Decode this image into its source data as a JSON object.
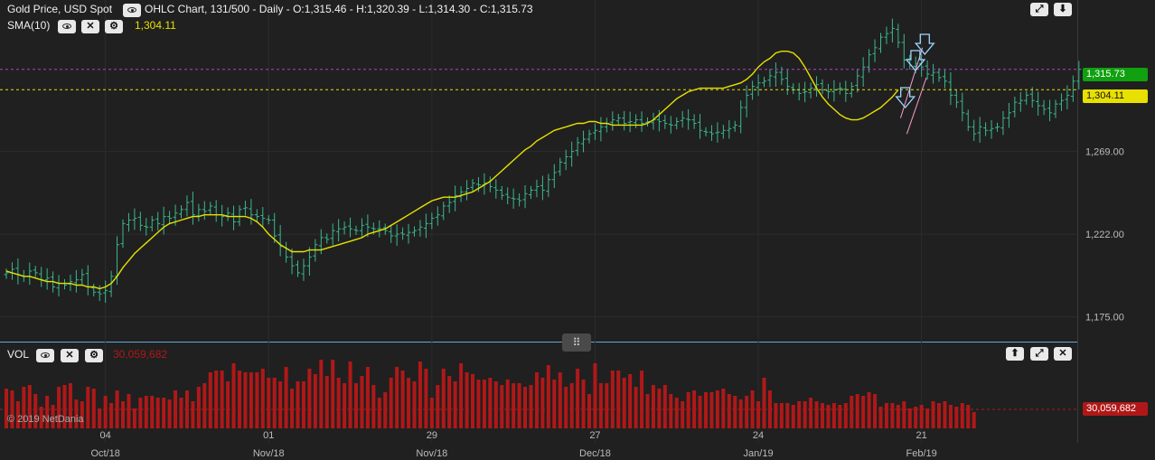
{
  "header": {
    "instrument": "Gold Price, USD Spot",
    "chart_info": "OHLC Chart, 131/500 - Daily - O:1,315.46 - H:1,320.39 - L:1,314.30 - C:1,315.73",
    "sma_label": "SMA(10)",
    "sma_value": "1,304.11",
    "close_icon_label": "✕",
    "settings_icon_label": "⚙"
  },
  "volume_panel": {
    "label": "VOL",
    "value_text": "30,059,682",
    "tag_value": "30,059,682",
    "copyright": "© 2019 NetDania"
  },
  "price_tags": {
    "last": "1,315.73",
    "sma": "1,304.11"
  },
  "colors": {
    "background": "#202020",
    "bar_up": "#3bb88d",
    "sma_line": "#e8e000",
    "volume_bar": "#b01818",
    "last_tag": "#10a010",
    "sma_tag": "#e8e000",
    "channel_line": "#ff9bd0",
    "arrow": "#9fd8ff"
  },
  "chart_data": {
    "type": "ohlc",
    "ylim": [
      1165,
      1350
    ],
    "y_ticks": [
      "1,175.00",
      "1,222.00",
      "1,269.00"
    ],
    "y_tick_values": [
      1175,
      1222,
      1269
    ],
    "last_price": 1315.73,
    "sma_last": 1304.11,
    "x_tick_days": [
      "04",
      "01",
      "29",
      "27",
      "24",
      "21"
    ],
    "x_tick_months": [
      "Oct/18",
      "Nov/18",
      "Nov/18",
      "Dec/18",
      "Jan/19",
      "Feb/19"
    ],
    "x_tick_index": [
      17,
      45,
      73,
      101,
      129,
      157
    ],
    "closes": [
      1200,
      1202,
      1199,
      1198,
      1201,
      1200,
      1196,
      1197,
      1192,
      1194,
      1193,
      1195,
      1196,
      1199,
      1192,
      1189,
      1188,
      1190,
      1198,
      1216,
      1228,
      1230,
      1231,
      1227,
      1226,
      1230,
      1228,
      1232,
      1231,
      1234,
      1236,
      1240,
      1233,
      1236,
      1235,
      1238,
      1233,
      1232,
      1234,
      1229,
      1236,
      1237,
      1233,
      1232,
      1231,
      1230,
      1221,
      1215,
      1209,
      1204,
      1200,
      1204,
      1209,
      1216,
      1220,
      1219,
      1224,
      1225,
      1226,
      1225,
      1224,
      1227,
      1226,
      1225,
      1225,
      1224,
      1221,
      1222,
      1222,
      1223,
      1224,
      1226,
      1228,
      1231,
      1233,
      1238,
      1240,
      1244,
      1246,
      1248,
      1251,
      1250,
      1251,
      1249,
      1247,
      1244,
      1243,
      1242,
      1241,
      1245,
      1247,
      1249,
      1247,
      1253,
      1257,
      1263,
      1266,
      1269,
      1274,
      1276,
      1279,
      1281,
      1283,
      1285,
      1287,
      1288,
      1285,
      1286,
      1287,
      1285,
      1286,
      1287,
      1286,
      1285,
      1284,
      1286,
      1288,
      1287,
      1285,
      1281,
      1280,
      1279,
      1280,
      1281,
      1282,
      1284,
      1294,
      1301,
      1306,
      1308,
      1309,
      1312,
      1314,
      1310,
      1306,
      1304,
      1302,
      1303,
      1305,
      1307,
      1304,
      1303,
      1304,
      1305,
      1302,
      1306,
      1312,
      1317,
      1324,
      1328,
      1334,
      1336,
      1339,
      1331,
      1321,
      1318,
      1319,
      1317,
      1313,
      1314,
      1311,
      1309,
      1301,
      1297,
      1291,
      1283,
      1279,
      1283,
      1281,
      1282,
      1283,
      1288,
      1291,
      1297,
      1298,
      1301,
      1298,
      1295,
      1293,
      1291,
      1296,
      1298,
      1301,
      1309,
      1315.73
    ],
    "sma": [
      1201,
      1200,
      1199,
      1198,
      1198,
      1197,
      1196,
      1195,
      1195,
      1194,
      1194,
      1194,
      1193,
      1193,
      1192,
      1192,
      1191,
      1192,
      1194,
      1198,
      1203,
      1207,
      1211,
      1214,
      1217,
      1220,
      1223,
      1226,
      1228,
      1229,
      1230,
      1231,
      1232,
      1232,
      1233,
      1233,
      1233,
      1233,
      1232,
      1232,
      1232,
      1232,
      1231,
      1229,
      1226,
      1222,
      1219,
      1216,
      1214,
      1212,
      1212,
      1212,
      1213,
      1213,
      1213,
      1214,
      1215,
      1216,
      1217,
      1218,
      1219,
      1220,
      1222,
      1223,
      1224,
      1225,
      1227,
      1229,
      1231,
      1233,
      1235,
      1237,
      1239,
      1241,
      1242,
      1243,
      1243,
      1243,
      1244,
      1245,
      1246,
      1248,
      1250,
      1252,
      1255,
      1258,
      1261,
      1264,
      1267,
      1270,
      1272,
      1275,
      1277,
      1279,
      1281,
      1282,
      1283,
      1284,
      1285,
      1285,
      1286,
      1286,
      1285,
      1285,
      1284,
      1284,
      1284,
      1284,
      1284,
      1284,
      1285,
      1287,
      1290,
      1293,
      1296,
      1299,
      1301,
      1303,
      1304,
      1305,
      1305,
      1305,
      1305,
      1305,
      1306,
      1307,
      1308,
      1310,
      1313,
      1317,
      1320,
      1322,
      1325,
      1326,
      1326,
      1325,
      1322,
      1317,
      1311,
      1305,
      1300,
      1296,
      1293,
      1290,
      1288,
      1287,
      1287,
      1288,
      1290,
      1292,
      1294,
      1297,
      1300,
      1304.11
    ],
    "volumes": [
      22,
      21,
      15,
      23,
      24,
      19,
      12,
      18,
      13,
      23,
      24,
      25,
      16,
      15,
      23,
      22,
      11,
      18,
      14,
      21,
      15,
      19,
      11,
      17,
      18,
      18,
      17,
      17,
      16,
      21,
      17,
      21,
      15,
      23,
      25,
      31,
      32,
      32,
      26,
      36,
      32,
      31,
      31,
      31,
      33,
      28,
      28,
      26,
      34,
      22,
      26,
      26,
      33,
      30,
      38,
      29,
      38,
      28,
      25,
      37,
      25,
      29,
      34,
      24,
      17,
      20,
      28,
      34,
      32,
      28,
      26,
      37,
      33,
      17,
      24,
      33,
      29,
      26,
      36,
      31,
      30,
      27,
      27,
      28,
      26,
      24,
      27,
      25,
      25,
      23,
      24,
      31,
      28,
      35,
      27,
      31,
      23,
      25,
      33,
      27,
      19,
      36,
      25,
      25,
      32,
      32,
      28,
      30,
      23,
      32,
      19,
      24,
      22,
      24,
      19,
      17,
      15,
      20,
      21,
      18,
      20,
      20,
      21,
      22,
      19,
      18,
      16,
      18,
      21,
      15,
      28,
      21,
      14,
      14,
      14,
      13,
      15,
      15,
      17,
      15,
      14,
      13,
      14,
      13,
      14,
      18,
      19,
      18,
      20,
      19,
      12,
      14,
      14,
      13,
      15,
      11,
      12,
      13,
      11,
      15,
      14,
      15,
      13,
      12,
      14,
      13,
      9
    ]
  },
  "annotations": {
    "channel_upper": [
      [
        1152,
        1288
      ],
      [
        1180,
        1328
      ]
    ],
    "channel_lower": [
      [
        1160,
        1279
      ],
      [
        1185,
        1311
      ]
    ],
    "arrows": [
      1158,
      1171,
      1183
    ]
  }
}
